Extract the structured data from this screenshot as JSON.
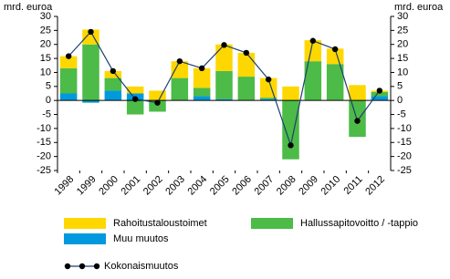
{
  "chart_data": {
    "type": "bar",
    "stacked": true,
    "ylabel": "mrd. euroa",
    "y2label": "mrd. euroa",
    "categories": [
      "1998",
      "1999",
      "2000",
      "2001",
      "2002",
      "2003",
      "2004",
      "2005",
      "2006",
      "2007",
      "2008",
      "2009",
      "2010",
      "2011",
      "2012"
    ],
    "series": [
      {
        "name": "Rahoitustaloustoimet",
        "type": "bar",
        "color": "#ffd700",
        "values": [
          4.3,
          5.3,
          2.5,
          2.5,
          3.5,
          6,
          7,
          9.5,
          8.5,
          7,
          5,
          7.5,
          5.5,
          5.5,
          0.5
        ]
      },
      {
        "name": "Hallussapitovoitto / -tappio",
        "type": "bar",
        "color": "#4cbb47",
        "values": [
          9,
          20,
          4.5,
          -5,
          -4,
          8,
          3,
          10,
          8.5,
          0.5,
          -21,
          14,
          13,
          -13,
          1.5
        ]
      },
      {
        "name": "Muu muutos",
        "type": "bar",
        "color": "#0099dd",
        "values": [
          2.5,
          -0.8,
          3.5,
          2.5,
          0,
          0,
          1.5,
          0.5,
          0,
          0.5,
          0,
          0,
          0,
          0,
          1.5
        ]
      },
      {
        "name": "Kokonaismuutos",
        "type": "line",
        "color": "#1f3f6f",
        "values": [
          15.8,
          24.5,
          10.5,
          0.5,
          -0.8,
          14,
          11.5,
          19.8,
          17,
          7.5,
          -16,
          21.3,
          18.3,
          -7.3,
          3.5
        ]
      }
    ],
    "ylim": [
      -25,
      30
    ],
    "yticks": [
      -25,
      -20,
      -15,
      -10,
      -5,
      0,
      5,
      10,
      15,
      20,
      25,
      30
    ],
    "y2lim": [
      -25,
      30
    ],
    "y2ticks": [
      -25,
      -20,
      -15,
      -10,
      -5,
      0,
      5,
      10,
      15,
      20,
      25,
      30
    ],
    "grid": false
  }
}
